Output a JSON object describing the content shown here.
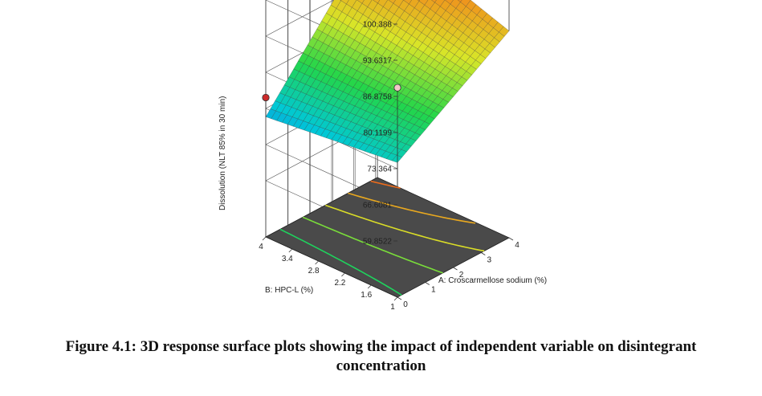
{
  "caption": {
    "line1": "Figure 4.1: 3D response surface plots showing the impact of independent variable on disintegrant",
    "line2": "concentration"
  },
  "chart_data": {
    "type": "surface",
    "zlabel": "Dissolution (NLT 85% in 30 min)",
    "xlabel": "A: Croscarmellose sodium (%)",
    "ylabel": "B: HPC-L (%)",
    "z_ticks": [
      "100.388",
      "93.6317",
      "86.8758",
      "80.1199",
      "73.364",
      "66.6081",
      "59.8522"
    ],
    "x_ticks": [
      "0",
      "1",
      "2",
      "3",
      "4"
    ],
    "y_ticks": [
      "1",
      "1.6",
      "2.2",
      "2.8",
      "3.4",
      "4"
    ],
    "xlim": [
      0,
      4
    ],
    "ylim": [
      1,
      4
    ],
    "zlim": [
      59.8522,
      100.388
    ],
    "surface_corners": {
      "A0_B1": 74.5,
      "A0_B4": 71.8,
      "A4_B1": 88.0,
      "A4_B4": 96.5
    },
    "contour_levels": [
      75,
      80,
      85,
      90,
      95
    ],
    "design_points": [
      {
        "A": 0,
        "B": 4,
        "z": 75.4,
        "color": "#cc2a2a",
        "position": "above"
      },
      {
        "A": 0,
        "B": 1,
        "z": 88.5,
        "color": "#f3c8c8",
        "position": "below"
      },
      {
        "A": 4,
        "B": 4,
        "z": 93.6,
        "color": "#a0181c",
        "position": "above"
      },
      {
        "A": 4,
        "B": 1,
        "z": 99.0,
        "color": "#f3c8c8",
        "position": "below"
      }
    ],
    "colormap": [
      "#1f4fd8",
      "#00c8d8",
      "#22d64a",
      "#d8e628",
      "#f0901c",
      "#e0211c"
    ],
    "floor_color": "#4a4a4a"
  }
}
